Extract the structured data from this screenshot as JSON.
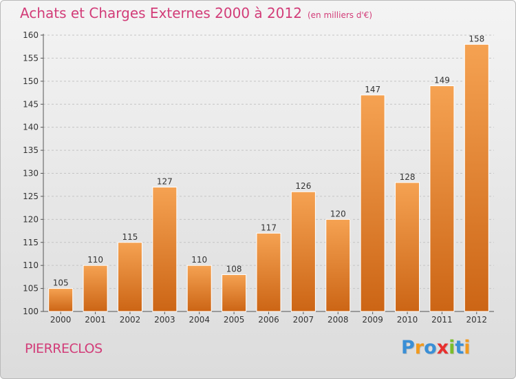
{
  "header": {
    "title": "Achats et Charges Externes 2000 à 2012",
    "subtitle": "(en milliers d'€)"
  },
  "footer": {
    "location": "PIERRECLOS",
    "brand_letters": [
      {
        "char": "P",
        "color": "#3a8fd6"
      },
      {
        "char": "r",
        "color": "#f29a1d"
      },
      {
        "char": "o",
        "color": "#3a8fd6"
      },
      {
        "char": "x",
        "color": "#e8302e"
      },
      {
        "char": "i",
        "color": "#7bbd2a"
      },
      {
        "char": "t",
        "color": "#3a8fd6"
      },
      {
        "char": "i",
        "color": "#f29a1d"
      }
    ]
  },
  "colors": {
    "bar_light": "#f5a252",
    "bar_dark": "#cc6515",
    "title": "#d23c78"
  },
  "chart_data": {
    "type": "bar",
    "title": "Achats et Charges Externes 2000 à 2012",
    "subtitle": "(en milliers d'€)",
    "xlabel": "",
    "ylabel": "",
    "ylim": [
      100,
      160
    ],
    "yticks": [
      100,
      105,
      110,
      115,
      120,
      125,
      130,
      135,
      140,
      145,
      150,
      155,
      160
    ],
    "grid": "horizontal-dashed",
    "categories": [
      "2000",
      "2001",
      "2002",
      "2003",
      "2004",
      "2005",
      "2006",
      "2007",
      "2008",
      "2009",
      "2010",
      "2011",
      "2012"
    ],
    "values": [
      105,
      110,
      115,
      127,
      110,
      108,
      117,
      126,
      120,
      147,
      128,
      149,
      158
    ]
  }
}
